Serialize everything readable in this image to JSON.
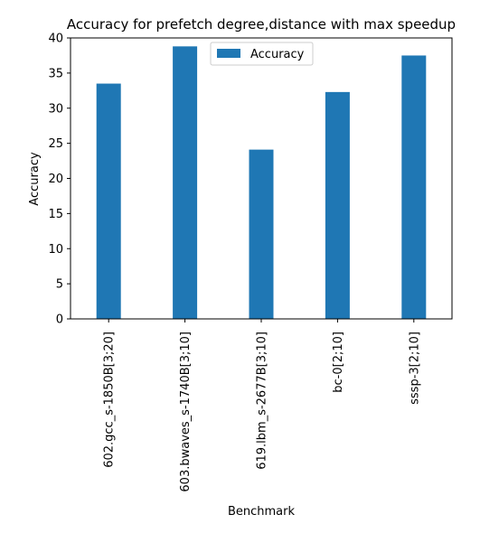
{
  "chart_data": {
    "type": "bar",
    "title": "Accuracy for prefetch degree,distance with max speedup",
    "xlabel": "Benchmark",
    "ylabel": "Accuracy",
    "ylim": [
      0,
      40
    ],
    "yticks": [
      0,
      5,
      10,
      15,
      20,
      25,
      30,
      35,
      40
    ],
    "categories": [
      "602.gcc_s-1850B[3;20]",
      "603.bwaves_s-1740B[3;10]",
      "619.lbm_s-2677B[3;10]",
      "bc-0[2;10]",
      "sssp-3[2;10]"
    ],
    "series": [
      {
        "name": "Accuracy",
        "color": "#1f77b4",
        "values": [
          33.5,
          38.8,
          24.1,
          32.3,
          37.5
        ]
      }
    ],
    "legend": {
      "position": "upper-center"
    },
    "grid": false
  }
}
